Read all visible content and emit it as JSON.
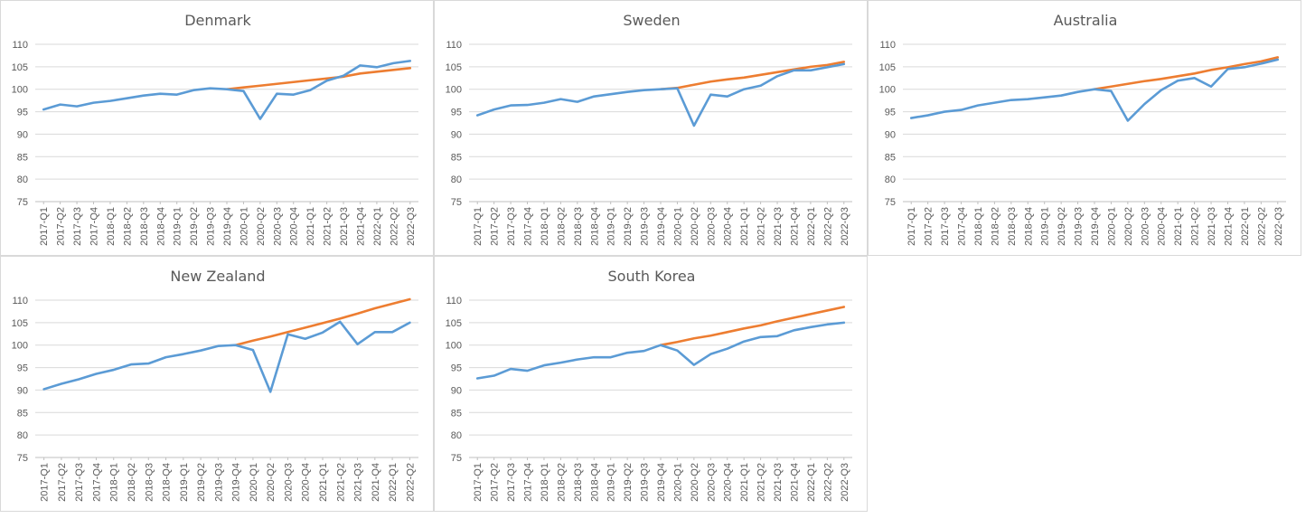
{
  "colors": {
    "actual": "#5b9bd5",
    "trend": "#ed7d31",
    "grid": "#d9d9d9",
    "text": "#595959"
  },
  "chart_data": [
    {
      "type": "line",
      "title": "Denmark",
      "ylim": [
        75,
        110
      ],
      "yticks": [
        75,
        80,
        85,
        90,
        95,
        100,
        105,
        110
      ],
      "grid": true,
      "x": [
        "2017-Q1",
        "2017-Q2",
        "2017-Q3",
        "2017-Q4",
        "2018-Q1",
        "2018-Q2",
        "2018-Q3",
        "2018-Q4",
        "2019-Q1",
        "2019-Q2",
        "2019-Q3",
        "2019-Q4",
        "2020-Q1",
        "2020-Q2",
        "2020-Q3",
        "2020-Q4",
        "2021-Q1",
        "2021-Q2",
        "2021-Q3",
        "2021-Q4",
        "2022-Q1",
        "2022-Q2",
        "2022-Q3"
      ],
      "series": [
        {
          "color": "#5b9bd5",
          "values": [
            95.5,
            96.6,
            96.2,
            97.0,
            97.4,
            98.0,
            98.6,
            99.0,
            98.8,
            99.8,
            100.2,
            100.0,
            99.6,
            93.4,
            99.0,
            98.8,
            99.8,
            101.9,
            103.0,
            105.3,
            104.9,
            105.8,
            106.3
          ]
        },
        {
          "color": "#ed7d31",
          "values": [
            null,
            null,
            null,
            null,
            null,
            null,
            null,
            null,
            null,
            null,
            null,
            100.0,
            100.4,
            100.8,
            101.2,
            101.6,
            102.0,
            102.4,
            102.8,
            103.5,
            103.9,
            104.3,
            104.7
          ]
        }
      ]
    },
    {
      "type": "line",
      "title": "Sweden",
      "ylim": [
        75,
        110
      ],
      "yticks": [
        75,
        80,
        85,
        90,
        95,
        100,
        105,
        110
      ],
      "grid": true,
      "x": [
        "2017-Q1",
        "2017-Q2",
        "2017-Q3",
        "2017-Q4",
        "2018-Q1",
        "2018-Q2",
        "2018-Q3",
        "2018-Q4",
        "2019-Q1",
        "2019-Q2",
        "2019-Q3",
        "2019-Q4",
        "2020-Q1",
        "2020-Q2",
        "2020-Q3",
        "2020-Q4",
        "2021-Q1",
        "2021-Q2",
        "2021-Q3",
        "2021-Q4",
        "2022-Q1",
        "2022-Q2",
        "2022-Q3"
      ],
      "series": [
        {
          "color": "#5b9bd5",
          "values": [
            94.2,
            95.5,
            96.4,
            96.5,
            97.0,
            97.8,
            97.2,
            98.4,
            98.9,
            99.4,
            99.8,
            100.0,
            100.2,
            91.9,
            98.8,
            98.4,
            100.0,
            100.8,
            102.9,
            104.2,
            104.2,
            104.9,
            105.6
          ]
        },
        {
          "color": "#ed7d31",
          "values": [
            null,
            null,
            null,
            null,
            null,
            null,
            null,
            null,
            null,
            null,
            null,
            100.0,
            100.3,
            101.0,
            101.7,
            102.2,
            102.6,
            103.2,
            103.8,
            104.4,
            105.0,
            105.4,
            106.1
          ]
        }
      ]
    },
    {
      "type": "line",
      "title": "Australia",
      "ylim": [
        75,
        110
      ],
      "yticks": [
        75,
        80,
        85,
        90,
        95,
        100,
        105,
        110
      ],
      "grid": true,
      "x": [
        "2017-Q1",
        "2017-Q2",
        "2017-Q3",
        "2017-Q4",
        "2018-Q1",
        "2018-Q2",
        "2018-Q3",
        "2018-Q4",
        "2019-Q1",
        "2019-Q2",
        "2019-Q3",
        "2019-Q4",
        "2020-Q1",
        "2020-Q2",
        "2020-Q3",
        "2020-Q4",
        "2021-Q1",
        "2021-Q2",
        "2021-Q3",
        "2021-Q4",
        "2022-Q1",
        "2022-Q2",
        "2022-Q3"
      ],
      "series": [
        {
          "color": "#5b9bd5",
          "values": [
            93.6,
            94.2,
            95.0,
            95.4,
            96.4,
            97.0,
            97.6,
            97.8,
            98.2,
            98.6,
            99.4,
            100.0,
            99.6,
            93.0,
            96.7,
            99.8,
            101.9,
            102.5,
            100.6,
            104.5,
            104.9,
            105.7,
            106.6
          ]
        },
        {
          "color": "#ed7d31",
          "values": [
            null,
            null,
            null,
            null,
            null,
            null,
            null,
            null,
            null,
            null,
            null,
            100.0,
            100.6,
            101.2,
            101.8,
            102.3,
            102.9,
            103.5,
            104.3,
            104.9,
            105.6,
            106.2,
            107.1
          ]
        }
      ]
    },
    {
      "type": "line",
      "title": "New Zealand",
      "ylim": [
        75,
        110
      ],
      "yticks": [
        75,
        80,
        85,
        90,
        95,
        100,
        105,
        110
      ],
      "grid": true,
      "x": [
        "2017-Q1",
        "2017-Q2",
        "2017-Q3",
        "2017-Q4",
        "2018-Q1",
        "2018-Q2",
        "2018-Q3",
        "2018-Q4",
        "2019-Q1",
        "2019-Q2",
        "2019-Q3",
        "2019-Q4",
        "2020-Q1",
        "2020-Q2",
        "2020-Q3",
        "2020-Q4",
        "2021-Q1",
        "2021-Q2",
        "2021-Q3",
        "2021-Q4",
        "2022-Q1",
        "2022-Q2"
      ],
      "series": [
        {
          "color": "#5b9bd5",
          "values": [
            90.2,
            91.4,
            92.4,
            93.6,
            94.5,
            95.7,
            95.9,
            97.3,
            98.0,
            98.8,
            99.8,
            100.0,
            98.9,
            89.6,
            102.4,
            101.4,
            102.8,
            105.2,
            100.2,
            102.9,
            102.9,
            105.0
          ]
        },
        {
          "color": "#ed7d31",
          "values": [
            null,
            null,
            null,
            null,
            null,
            null,
            null,
            null,
            null,
            null,
            null,
            100.0,
            101.0,
            101.9,
            102.9,
            103.9,
            104.9,
            105.9,
            107.0,
            108.2,
            109.2,
            110.2
          ]
        }
      ]
    },
    {
      "type": "line",
      "title": "South Korea",
      "ylim": [
        75,
        110
      ],
      "yticks": [
        75,
        80,
        85,
        90,
        95,
        100,
        105,
        110
      ],
      "grid": true,
      "x": [
        "2017-Q1",
        "2017-Q2",
        "2017-Q3",
        "2017-Q4",
        "2018-Q1",
        "2018-Q2",
        "2018-Q3",
        "2018-Q4",
        "2019-Q1",
        "2019-Q2",
        "2019-Q3",
        "2019-Q4",
        "2020-Q1",
        "2020-Q2",
        "2020-Q3",
        "2020-Q4",
        "2021-Q1",
        "2021-Q2",
        "2021-Q3",
        "2021-Q4",
        "2022-Q1",
        "2022-Q2",
        "2022-Q3"
      ],
      "series": [
        {
          "color": "#5b9bd5",
          "values": [
            92.6,
            93.2,
            94.7,
            94.3,
            95.5,
            96.1,
            96.8,
            97.3,
            97.3,
            98.3,
            98.7,
            100.0,
            98.8,
            95.6,
            98.0,
            99.2,
            100.8,
            101.8,
            102.0,
            103.3,
            104.0,
            104.6,
            105.0
          ]
        },
        {
          "color": "#ed7d31",
          "values": [
            null,
            null,
            null,
            null,
            null,
            null,
            null,
            null,
            null,
            null,
            null,
            100.0,
            100.7,
            101.5,
            102.1,
            102.9,
            103.7,
            104.4,
            105.3,
            106.1,
            106.9,
            107.7,
            108.5
          ]
        }
      ]
    }
  ]
}
